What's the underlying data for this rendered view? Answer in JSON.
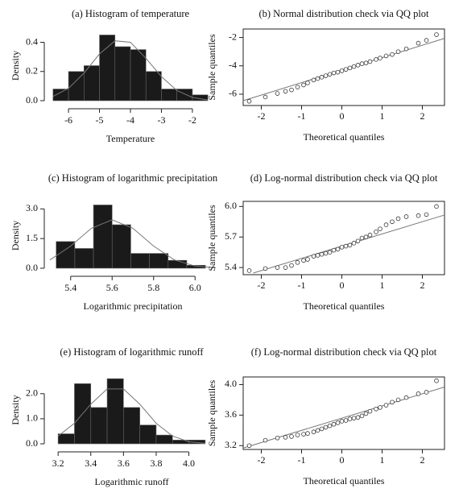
{
  "chart_data": [
    {
      "type": "histogram",
      "title": "(a) Histogram of temperature",
      "xlabel": "Temperature",
      "ylabel": "Density",
      "bins": [
        -6.5,
        -6,
        -5.5,
        -5,
        -4.5,
        -4,
        -3.5,
        -3,
        -2.5,
        -2,
        -1.5
      ],
      "values": [
        0.08,
        0.2,
        0.24,
        0.45,
        0.37,
        0.35,
        0.2,
        0.08,
        0.08,
        0.04
      ],
      "color": "#1a1a1a",
      "density_curve": {
        "color": "#777777",
        "x": [
          -6.5,
          -6,
          -5.5,
          -5,
          -4.5,
          -4,
          -3.5,
          -3,
          -2.5,
          -2,
          -1.5
        ],
        "values": [
          0.029,
          0.085,
          0.189,
          0.32,
          0.41,
          0.4,
          0.29,
          0.165,
          0.07,
          0.022,
          0.005
        ]
      },
      "xlim": [
        -6.6,
        -1.4
      ],
      "xticks": [
        -6,
        -5,
        -4,
        -3,
        -2
      ],
      "ylim": [
        0,
        0.48
      ],
      "yticks": [
        {
          "value": 0,
          "label": "0.0"
        },
        0.2,
        0.4
      ]
    },
    {
      "type": "qq",
      "title": "(b) Normal distribution check via QQ plot",
      "xlabel": "Theoretical quantiles",
      "ylabel": "Sample quantiles",
      "x": [
        -2.3,
        -1.9,
        -1.6,
        -1.4,
        -1.25,
        -1.1,
        -0.95,
        -0.85,
        -0.7,
        -0.6,
        -0.5,
        -0.4,
        -0.3,
        -0.2,
        -0.1,
        0,
        0.1,
        0.2,
        0.3,
        0.4,
        0.5,
        0.6,
        0.7,
        0.85,
        0.95,
        1.1,
        1.25,
        1.4,
        1.6,
        1.9,
        2.1,
        2.35
      ],
      "values": [
        -6.5,
        -6.2,
        -5.95,
        -5.8,
        -5.7,
        -5.5,
        -5.35,
        -5.2,
        -5.0,
        -4.9,
        -4.8,
        -4.7,
        -4.6,
        -4.5,
        -4.45,
        -4.35,
        -4.25,
        -4.15,
        -4.05,
        -3.95,
        -3.85,
        -3.8,
        -3.7,
        -3.55,
        -3.45,
        -3.3,
        -3.2,
        -3.0,
        -2.8,
        -2.4,
        -2.2,
        -1.8
      ],
      "reference_line": {
        "color": "#777777",
        "x": [
          -2.45,
          2.55
        ],
        "values": [
          -6.46,
          -2.06
        ]
      },
      "xlim": [
        -2.45,
        2.55
      ],
      "xticks": [
        -2,
        -1,
        0,
        1,
        2
      ],
      "ylim": [
        -6.8,
        -1.4
      ],
      "yticks": [
        -6,
        -4,
        -2
      ]
    },
    {
      "type": "histogram",
      "title": "(c) Histogram of logarithmic precipitation",
      "xlabel": "Logarithmic precipitation",
      "ylabel": "Density",
      "bins": [
        5.33,
        5.42,
        5.51,
        5.6,
        5.69,
        5.78,
        5.87,
        5.96,
        6.05
      ],
      "values": [
        1.35,
        1.0,
        3.2,
        2.2,
        0.75,
        0.75,
        0.4,
        0.15
      ],
      "color": "#1a1a1a",
      "density_curve": {
        "color": "#777777",
        "x": [
          5.3,
          5.4,
          5.5,
          5.6,
          5.7,
          5.8,
          5.9,
          6.0,
          6.1
        ],
        "values": [
          0.42,
          1.12,
          2.02,
          2.45,
          2.02,
          1.12,
          0.42,
          0.11,
          0.02
        ]
      },
      "xlim": [
        5.3,
        6.1
      ],
      "xticks": [
        5.4,
        5.6,
        5.8,
        {
          "value": 6,
          "label": "6.0"
        }
      ],
      "ylim": [
        0,
        3.3
      ],
      "yticks": [
        {
          "value": 0,
          "label": "0.0"
        },
        1.5,
        {
          "value": 3,
          "label": "3.0"
        }
      ]
    },
    {
      "type": "qq",
      "title": "(d) Log-normal distribution check via QQ plot",
      "xlabel": "Theoretical quantiles",
      "ylabel": "Sample quantiles",
      "x": [
        -2.3,
        -1.9,
        -1.6,
        -1.4,
        -1.25,
        -1.1,
        -0.95,
        -0.85,
        -0.7,
        -0.6,
        -0.5,
        -0.4,
        -0.3,
        -0.2,
        -0.1,
        0,
        0.1,
        0.2,
        0.3,
        0.4,
        0.5,
        0.6,
        0.7,
        0.85,
        0.95,
        1.1,
        1.25,
        1.4,
        1.6,
        1.9,
        2.1,
        2.35
      ],
      "values": [
        5.37,
        5.39,
        5.4,
        5.4,
        5.42,
        5.45,
        5.47,
        5.48,
        5.51,
        5.52,
        5.53,
        5.54,
        5.55,
        5.57,
        5.58,
        5.6,
        5.61,
        5.62,
        5.64,
        5.66,
        5.69,
        5.7,
        5.72,
        5.75,
        5.78,
        5.82,
        5.85,
        5.88,
        5.9,
        5.91,
        5.92,
        6.0
      ],
      "reference_line": {
        "color": "#777777",
        "x": [
          -2.2,
          2.55
        ],
        "values": [
          5.346,
          5.916
        ]
      },
      "xlim": [
        -2.45,
        2.55
      ],
      "xticks": [
        -2,
        -1,
        0,
        1,
        2
      ],
      "ylim": [
        5.33,
        6.05
      ],
      "yticks": [
        5.4,
        5.7,
        {
          "value": 6,
          "label": "6.0"
        }
      ]
    },
    {
      "type": "histogram",
      "title": "(e) Histogram of logarithmic runoff",
      "xlabel": "Logarithmic runoff",
      "ylabel": "Density",
      "bins": [
        3.2,
        3.3,
        3.4,
        3.5,
        3.6,
        3.7,
        3.8,
        3.9,
        4.0,
        4.1
      ],
      "values": [
        0.4,
        2.4,
        1.45,
        2.6,
        1.45,
        0.75,
        0.35,
        0.15,
        0.15
      ],
      "color": "#1a1a1a",
      "density_curve": {
        "color": "#777777",
        "x": [
          3.2,
          3.3,
          3.4,
          3.5,
          3.6,
          3.7,
          3.8,
          3.9,
          4.0,
          4.1
        ],
        "values": [
          0.31,
          0.82,
          1.58,
          2.19,
          2.19,
          1.58,
          0.82,
          0.31,
          0.08,
          0.02
        ]
      },
      "xlim": [
        3.15,
        4.15
      ],
      "xticks": [
        3.2,
        3.4,
        3.6,
        3.8,
        {
          "value": 4,
          "label": "4.0"
        }
      ],
      "ylim": [
        0,
        2.7
      ],
      "yticks": [
        {
          "value": 0,
          "label": "0.0"
        },
        {
          "value": 1,
          "label": "1.0"
        },
        {
          "value": 2,
          "label": "2.0"
        }
      ]
    },
    {
      "type": "qq",
      "title": "(f) Log-normal distribution check via QQ plot",
      "xlabel": "Theoretical quantiles",
      "ylabel": "Sample quantiles",
      "x": [
        -2.3,
        -1.9,
        -1.6,
        -1.4,
        -1.25,
        -1.1,
        -0.95,
        -0.85,
        -0.7,
        -0.6,
        -0.5,
        -0.4,
        -0.3,
        -0.2,
        -0.1,
        0,
        0.1,
        0.2,
        0.3,
        0.4,
        0.5,
        0.6,
        0.7,
        0.85,
        0.95,
        1.1,
        1.25,
        1.4,
        1.6,
        1.9,
        2.1,
        2.35
      ],
      "values": [
        3.2,
        3.27,
        3.3,
        3.31,
        3.32,
        3.34,
        3.35,
        3.36,
        3.38,
        3.4,
        3.42,
        3.44,
        3.46,
        3.48,
        3.5,
        3.52,
        3.53,
        3.55,
        3.56,
        3.57,
        3.59,
        3.62,
        3.65,
        3.68,
        3.7,
        3.73,
        3.77,
        3.8,
        3.83,
        3.88,
        3.9,
        4.05
      ],
      "reference_line": {
        "color": "#777777",
        "x": [
          -2.45,
          2.55
        ],
        "values": [
          3.168,
          3.968
        ]
      },
      "xlim": [
        -2.45,
        2.55
      ],
      "xticks": [
        -2,
        -1,
        0,
        1,
        2
      ],
      "ylim": [
        3.15,
        4.1
      ],
      "yticks": [
        3.2,
        3.6,
        {
          "value": 4,
          "label": "4.0"
        }
      ]
    }
  ]
}
